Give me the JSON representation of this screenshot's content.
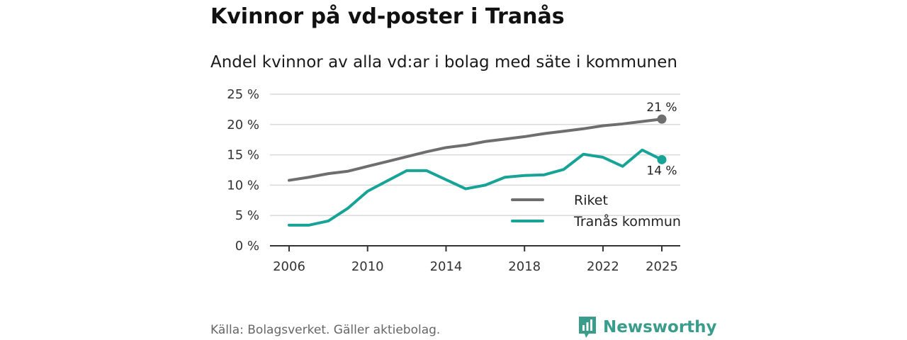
{
  "title": "Kvinnor på vd-poster i Tranås",
  "subtitle": "Andel kvinnor av alla vd:ar i bolag med säte i kommunen",
  "source": "Källa: Bolagsverket. Gäller aktiebolag.",
  "brand": {
    "name": "Newsworthy",
    "icon": "newsworthy-logo-icon",
    "color": "#3a9d8c"
  },
  "chart_data": {
    "type": "line",
    "title": "Kvinnor på vd-poster i Tranås",
    "subtitle": "Andel kvinnor av alla vd:ar i bolag med säte i kommunen",
    "xlabel": "",
    "ylabel": "",
    "x": [
      2006,
      2007,
      2008,
      2009,
      2010,
      2011,
      2012,
      2013,
      2014,
      2015,
      2016,
      2017,
      2018,
      2019,
      2020,
      2021,
      2022,
      2023,
      2024,
      2025
    ],
    "ylim": [
      0,
      25
    ],
    "xlim": [
      2006,
      2025
    ],
    "yticks": [
      0,
      5,
      10,
      15,
      20,
      25
    ],
    "ytick_labels": [
      "0 %",
      "5 %",
      "10 %",
      "15 %",
      "20 %",
      "25 %"
    ],
    "xticks": [
      2006,
      2010,
      2014,
      2018,
      2022,
      2025
    ],
    "xtick_labels": [
      "2006",
      "2010",
      "2014",
      "2018",
      "2022",
      "2025"
    ],
    "grid": true,
    "legend_position": "bottom-right",
    "series": [
      {
        "name": "Riket",
        "color": "#6e6e6e",
        "values": [
          10.8,
          11.3,
          11.9,
          12.3,
          13.1,
          13.9,
          14.7,
          15.5,
          16.2,
          16.6,
          17.2,
          17.6,
          18.0,
          18.5,
          18.9,
          19.3,
          19.8,
          20.1,
          20.5,
          20.9
        ],
        "end_label": "21 %"
      },
      {
        "name": "Tranås kommun",
        "color": "#17a396",
        "values": [
          3.4,
          3.4,
          4.1,
          6.2,
          9.0,
          10.7,
          12.4,
          12.4,
          10.9,
          9.4,
          10.0,
          11.3,
          11.6,
          11.7,
          12.6,
          15.1,
          14.6,
          13.1,
          15.8,
          14.2
        ],
        "end_label": "14 %"
      }
    ]
  }
}
